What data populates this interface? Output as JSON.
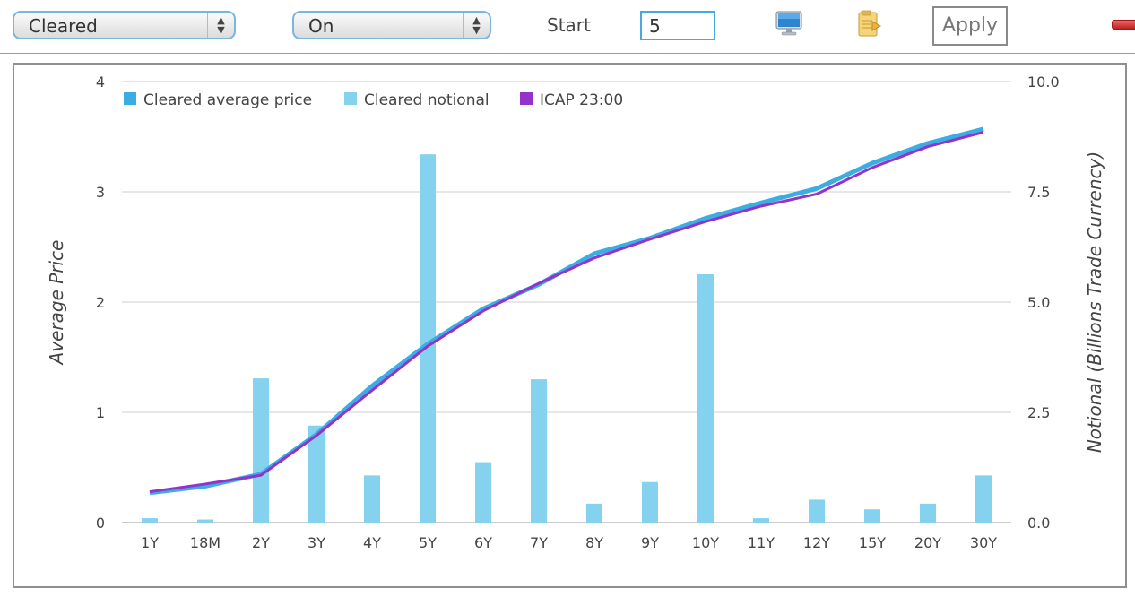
{
  "toolbar": {
    "filter_select": "Cleared",
    "mode_select": "On",
    "start_label": "Start",
    "start_value": "5",
    "apply_label": "Apply"
  },
  "chart_data": {
    "type": "bar+line",
    "categories": [
      "1Y",
      "18M",
      "2Y",
      "3Y",
      "4Y",
      "5Y",
      "6Y",
      "7Y",
      "8Y",
      "9Y",
      "10Y",
      "11Y",
      "12Y",
      "15Y",
      "20Y",
      "30Y"
    ],
    "series": [
      {
        "name": "Cleared average price",
        "type": "line",
        "axis": "left",
        "color": "#3aaee2",
        "values": [
          0.27,
          0.33,
          0.44,
          0.8,
          1.24,
          1.62,
          1.94,
          2.16,
          2.44,
          2.58,
          2.76,
          2.9,
          3.03,
          3.26,
          3.44,
          3.57
        ]
      },
      {
        "name": "Cleared notional",
        "type": "bar",
        "axis": "right",
        "color": "#85d2ee",
        "values": [
          0.1,
          0.07,
          3.27,
          2.2,
          1.07,
          8.35,
          1.37,
          3.25,
          0.43,
          0.92,
          5.63,
          0.1,
          0.52,
          0.3,
          0.43,
          1.07
        ]
      },
      {
        "name": "ICAP 23:00",
        "type": "line",
        "axis": "left",
        "color": "#9333cc",
        "values": [
          0.28,
          0.35,
          0.43,
          0.79,
          1.2,
          1.6,
          1.92,
          2.17,
          2.4,
          2.57,
          2.73,
          2.87,
          2.98,
          3.22,
          3.41,
          3.54
        ]
      }
    ],
    "ylabel": "Average Price",
    "y2label": "Notional (Billions Trade Currency)",
    "ylim": [
      0,
      4
    ],
    "y2lim": [
      0,
      10
    ],
    "yticks": [
      "0",
      "1",
      "2",
      "3",
      "4"
    ],
    "y2ticks": [
      "0.0",
      "2.5",
      "5.0",
      "7.5",
      "10.0"
    ],
    "grid": true,
    "legend": "top-left"
  }
}
